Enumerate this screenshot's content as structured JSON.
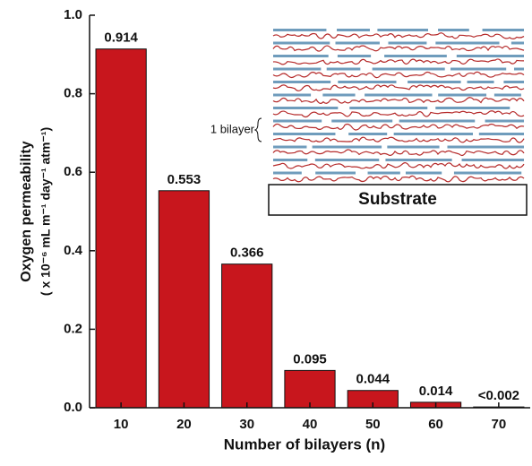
{
  "chart_data": {
    "type": "bar",
    "categories": [
      "10",
      "20",
      "30",
      "40",
      "50",
      "60",
      "70"
    ],
    "values": [
      0.914,
      0.553,
      0.366,
      0.095,
      0.044,
      0.014,
      0.002
    ],
    "value_labels": [
      "0.914",
      "0.553",
      "0.366",
      "0.095",
      "0.044",
      "0.014",
      "<0.002"
    ],
    "color": "#c8161d",
    "ylim": [
      0,
      1
    ],
    "yticks": [
      {
        "value": 0,
        "label": "0.0"
      },
      0.2,
      0.4,
      0.6,
      0.8,
      {
        "value": 1,
        "label": "1.0"
      }
    ],
    "x_label": "Number of bilayers (n)",
    "y_label": [
      "Oxygen permeability",
      "( x 10⁻⁶ mL m⁻¹ day⁻¹ atm⁻¹)"
    ],
    "inset": {
      "label": "1 bilayer",
      "substrate": "Substrate"
    }
  }
}
